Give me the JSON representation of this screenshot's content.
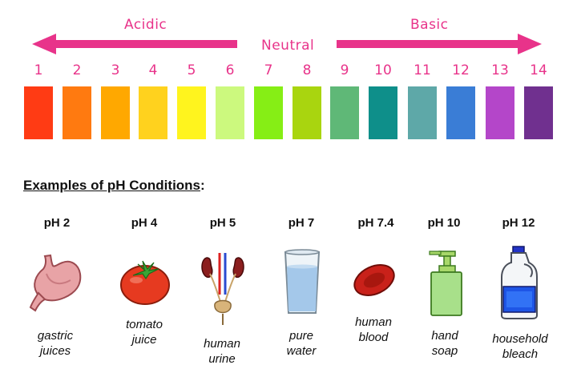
{
  "scale": {
    "acidic_label": "Acidic",
    "neutral_label": "Neutral",
    "basic_label": "Basic",
    "accent_color": "#e8338a",
    "steps": [
      {
        "value": "1",
        "color": "#ff3b14"
      },
      {
        "value": "2",
        "color": "#ff7a10"
      },
      {
        "value": "3",
        "color": "#ffa800"
      },
      {
        "value": "4",
        "color": "#ffd21e"
      },
      {
        "value": "5",
        "color": "#fff41e"
      },
      {
        "value": "6",
        "color": "#ccf97e"
      },
      {
        "value": "7",
        "color": "#86ee15"
      },
      {
        "value": "8",
        "color": "#a9d50f"
      },
      {
        "value": "9",
        "color": "#5fb877"
      },
      {
        "value": "10",
        "color": "#0e8f8a"
      },
      {
        "value": "11",
        "color": "#5ea8a8"
      },
      {
        "value": "12",
        "color": "#3a7dd6"
      },
      {
        "value": "13",
        "color": "#b446c9"
      },
      {
        "value": "14",
        "color": "#70308f"
      }
    ]
  },
  "examples": {
    "heading": "Examples of pH Conditions",
    "heading_suffix": ":",
    "items": [
      {
        "ph": "pH 2",
        "caption_line1": "gastric",
        "caption_line2": "juices",
        "icon": "stomach-icon"
      },
      {
        "ph": "pH 4",
        "caption_line1": "tomato",
        "caption_line2": "juice",
        "icon": "tomato-icon"
      },
      {
        "ph": "pH 5",
        "caption_line1": "human",
        "caption_line2": "urine",
        "icon": "urinary-system-icon"
      },
      {
        "ph": "pH 7",
        "caption_line1": "pure",
        "caption_line2": "water",
        "icon": "water-glass-icon"
      },
      {
        "ph": "pH 7.4",
        "caption_line1": "human",
        "caption_line2": "blood",
        "icon": "blood-cell-icon"
      },
      {
        "ph": "pH 10",
        "caption_line1": "hand",
        "caption_line2": "soap",
        "icon": "soap-dispenser-icon"
      },
      {
        "ph": "pH 12",
        "caption_line1": "household",
        "caption_line2": "bleach",
        "icon": "bleach-bottle-icon"
      }
    ]
  }
}
